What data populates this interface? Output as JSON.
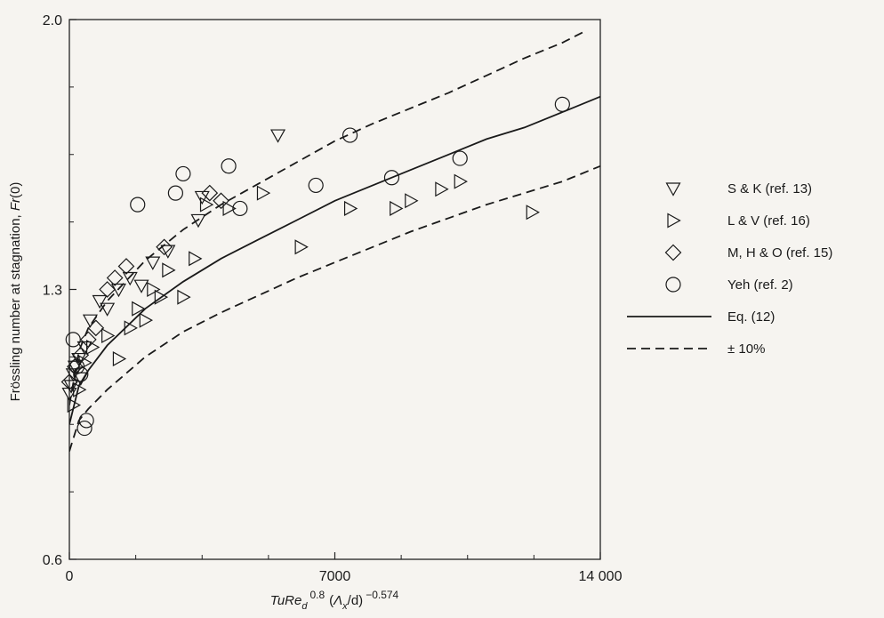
{
  "chart_data": {
    "type": "scatter",
    "title": "",
    "xlabel": {
      "base": "TuRe",
      "base_sub": "d",
      "sup1": "0.8",
      "mid": "(",
      "lambda": "Λ",
      "lambda_sub": "x",
      "mid2": "/d)",
      "sup2": "−0.574"
    },
    "ylabel": {
      "text": "Frössling number at stagnation, ",
      "italic": "Fr",
      "suffix": "(0)"
    },
    "xlim": [
      0,
      14000
    ],
    "ylim": [
      0.6,
      2.0
    ],
    "x_ticks": [
      0,
      7000,
      14000
    ],
    "x_tick_labels": [
      "0",
      "7000",
      "14 000"
    ],
    "y_ticks": [
      0.6,
      1.3,
      2.0
    ],
    "y_tick_labels": [
      "0.6",
      "1.3",
      "2.0"
    ],
    "grid": false,
    "legend_position": "right",
    "series": [
      {
        "name": "S & K (ref. 13)",
        "marker": "triangle-down",
        "points": [
          [
            0,
            1.03
          ],
          [
            50,
            1.05
          ],
          [
            100,
            1.08
          ],
          [
            150,
            1.1
          ],
          [
            250,
            1.12
          ],
          [
            300,
            1.07
          ],
          [
            400,
            1.15
          ],
          [
            550,
            1.22
          ],
          [
            800,
            1.27
          ],
          [
            1000,
            1.25
          ],
          [
            1300,
            1.3
          ],
          [
            1600,
            1.33
          ],
          [
            1900,
            1.31
          ],
          [
            2200,
            1.37
          ],
          [
            2600,
            1.4
          ],
          [
            3400,
            1.48
          ],
          [
            3500,
            1.54
          ],
          [
            5500,
            1.7
          ]
        ]
      },
      {
        "name": "L & V (ref. 16)",
        "marker": "triangle-right",
        "points": [
          [
            100,
            1.0
          ],
          [
            250,
            1.04
          ],
          [
            400,
            1.11
          ],
          [
            600,
            1.15
          ],
          [
            1000,
            1.18
          ],
          [
            1300,
            1.12
          ],
          [
            1600,
            1.2
          ],
          [
            1800,
            1.25
          ],
          [
            2000,
            1.22
          ],
          [
            2200,
            1.3
          ],
          [
            2400,
            1.28
          ],
          [
            2600,
            1.35
          ],
          [
            3000,
            1.28
          ],
          [
            3300,
            1.38
          ],
          [
            3600,
            1.52
          ],
          [
            4200,
            1.51
          ],
          [
            5100,
            1.55
          ],
          [
            6100,
            1.41
          ],
          [
            7400,
            1.51
          ],
          [
            8600,
            1.51
          ],
          [
            9000,
            1.53
          ],
          [
            9800,
            1.56
          ],
          [
            10300,
            1.58
          ],
          [
            12200,
            1.5
          ]
        ]
      },
      {
        "name": "M, H & O (ref. 15)",
        "marker": "diamond",
        "points": [
          [
            0,
            1.06
          ],
          [
            150,
            1.1
          ],
          [
            300,
            1.13
          ],
          [
            500,
            1.17
          ],
          [
            700,
            1.2
          ],
          [
            1000,
            1.3
          ],
          [
            1200,
            1.33
          ],
          [
            1500,
            1.36
          ],
          [
            2500,
            1.41
          ],
          [
            3700,
            1.55
          ],
          [
            4000,
            1.53
          ]
        ]
      },
      {
        "name": "Yeh (ref. 2)",
        "marker": "circle",
        "points": [
          [
            100,
            1.17
          ],
          [
            200,
            1.1
          ],
          [
            300,
            1.08
          ],
          [
            400,
            0.94
          ],
          [
            450,
            0.96
          ],
          [
            1800,
            1.52
          ],
          [
            2800,
            1.55
          ],
          [
            3000,
            1.6
          ],
          [
            4200,
            1.62
          ],
          [
            4500,
            1.51
          ],
          [
            6500,
            1.57
          ],
          [
            7400,
            1.7
          ],
          [
            8500,
            1.59
          ],
          [
            10300,
            1.64
          ],
          [
            13000,
            1.78
          ]
        ]
      }
    ],
    "lines": [
      {
        "name": "Eq. (12)",
        "style": "solid",
        "points": [
          [
            0,
            0.95
          ],
          [
            250,
            1.05
          ],
          [
            500,
            1.09
          ],
          [
            1000,
            1.155
          ],
          [
            2000,
            1.25
          ],
          [
            3000,
            1.32
          ],
          [
            4000,
            1.38
          ],
          [
            5000,
            1.43
          ],
          [
            6000,
            1.48
          ],
          [
            7000,
            1.53
          ],
          [
            8000,
            1.57
          ],
          [
            9000,
            1.61
          ],
          [
            10000,
            1.65
          ],
          [
            11000,
            1.69
          ],
          [
            12000,
            1.72
          ],
          [
            13000,
            1.76
          ],
          [
            14000,
            1.8
          ]
        ]
      },
      {
        "name": "± 10%",
        "style": "dashed",
        "points": [
          [
            0,
            1.0
          ],
          [
            250,
            1.14
          ],
          [
            500,
            1.2
          ],
          [
            1000,
            1.27
          ],
          [
            2000,
            1.375
          ],
          [
            3000,
            1.455
          ],
          [
            4000,
            1.52
          ],
          [
            5000,
            1.575
          ],
          [
            6000,
            1.63
          ],
          [
            7000,
            1.685
          ],
          [
            8000,
            1.73
          ],
          [
            9000,
            1.77
          ],
          [
            10000,
            1.81
          ],
          [
            11000,
            1.855
          ],
          [
            12000,
            1.9
          ],
          [
            13000,
            1.94
          ],
          [
            13600,
            1.97
          ]
        ]
      },
      {
        "name": "",
        "style": "dashed",
        "points": [
          [
            0,
            0.88
          ],
          [
            250,
            0.96
          ],
          [
            500,
            0.99
          ],
          [
            1000,
            1.04
          ],
          [
            2000,
            1.125
          ],
          [
            3000,
            1.19
          ],
          [
            4000,
            1.24
          ],
          [
            5000,
            1.285
          ],
          [
            6000,
            1.33
          ],
          [
            7000,
            1.37
          ],
          [
            8000,
            1.41
          ],
          [
            9000,
            1.45
          ],
          [
            10000,
            1.485
          ],
          [
            11000,
            1.52
          ],
          [
            12000,
            1.55
          ],
          [
            13000,
            1.58
          ],
          [
            14000,
            1.62
          ]
        ]
      }
    ],
    "legend": [
      {
        "label": "S & K (ref. 13)",
        "marker": "triangle-down"
      },
      {
        "label": "L & V (ref. 16)",
        "marker": "triangle-right"
      },
      {
        "label": "M, H & O (ref. 15)",
        "marker": "diamond"
      },
      {
        "label": "Yeh (ref. 2)",
        "marker": "circle"
      },
      {
        "label": "Eq. (12)",
        "marker": "solid-line"
      },
      {
        "label": "± 10%",
        "marker": "dashed-line"
      }
    ]
  }
}
